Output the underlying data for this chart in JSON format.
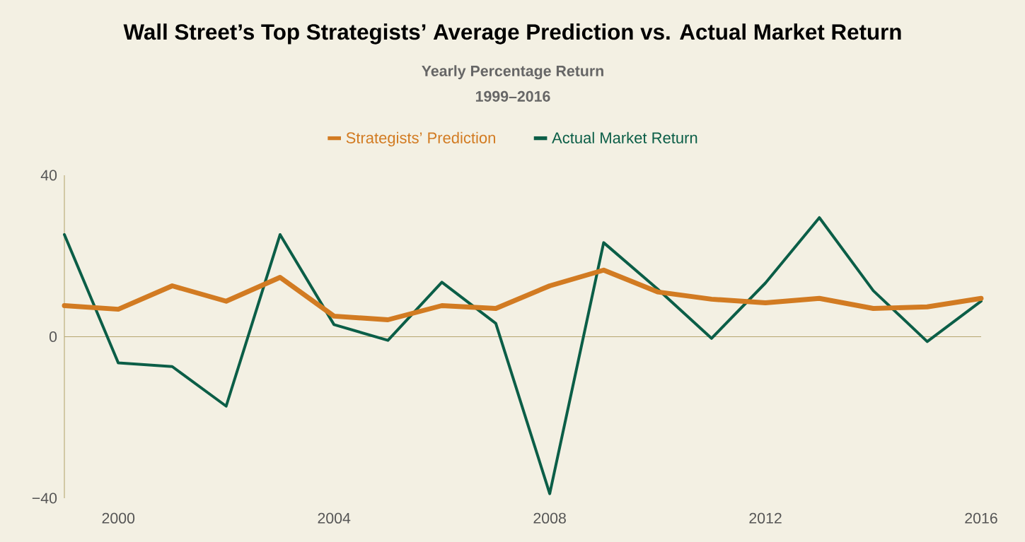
{
  "chart_data": {
    "type": "line",
    "title": "Wall Street’s Top Strategists’ Average Prediction vs. Actual Market Return",
    "subtitle": "Yearly Percentage Return\n1999–2016",
    "x": [
      1999,
      2000,
      2001,
      2002,
      2003,
      2004,
      2005,
      2006,
      2007,
      2008,
      2009,
      2010,
      2011,
      2012,
      2013,
      2014,
      2015,
      2016
    ],
    "series": [
      {
        "name": "Strategists’ Prediction",
        "color": "#d27b22",
        "values": [
          7.7,
          6.8,
          12.6,
          8.8,
          14.7,
          5.1,
          4.2,
          7.7,
          7.0,
          12.6,
          16.5,
          11.1,
          9.3,
          8.4,
          9.5,
          7.0,
          7.4,
          9.5
        ]
      },
      {
        "name": "Actual Market Return",
        "color": "#0b5e47",
        "values": [
          25.3,
          -6.5,
          -7.4,
          -17.2,
          25.3,
          3.0,
          -0.9,
          13.5,
          3.3,
          -38.9,
          23.3,
          11.8,
          -0.4,
          13.3,
          29.5,
          11.4,
          -1.2,
          8.8
        ]
      }
    ],
    "xlim": [
      1999,
      2016
    ],
    "xticks": [
      2000,
      2004,
      2008,
      2012,
      2016
    ],
    "ylim": [
      -40,
      40
    ],
    "yticks": [
      {
        "value": -40,
        "label": "−40"
      },
      0,
      40
    ],
    "ref_lines": [
      {
        "axis": "y",
        "value": 0,
        "color": "#b5a670"
      }
    ],
    "grid": false,
    "legend": "top",
    "marker": "none",
    "line_style": "solid"
  }
}
